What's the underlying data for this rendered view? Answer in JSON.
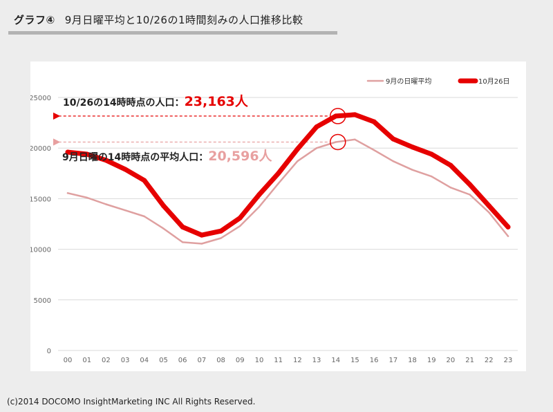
{
  "header": {
    "title_prefix": "グラフ④",
    "title_text": "9月日曜平均と10/26の1時間刻みの人口推移比較"
  },
  "footer": {
    "copyright": "(c)2014 DOCOMO InsightMarketing INC All Rights Reserved."
  },
  "colors": {
    "series_sep": "#dfa0a0",
    "series_oct": "#e60000",
    "annotation_oct": "#e60000",
    "annotation_sep": "#e8a0a0"
  },
  "chart_data": {
    "type": "line",
    "title": "",
    "xlabel": "",
    "ylabel": "",
    "ylim": [
      0,
      25000
    ],
    "yticks": [
      "0",
      "5000",
      "10000",
      "15000",
      "20000",
      "25000"
    ],
    "categories": [
      "00",
      "01",
      "02",
      "03",
      "04",
      "05",
      "06",
      "07",
      "08",
      "09",
      "10",
      "11",
      "12",
      "13",
      "14",
      "15",
      "16",
      "17",
      "18",
      "19",
      "20",
      "21",
      "22",
      "23"
    ],
    "series": [
      {
        "name": "9月の日曜平均",
        "values": [
          15550,
          15100,
          14450,
          13850,
          13250,
          12050,
          10700,
          10550,
          11100,
          12300,
          14200,
          16500,
          18700,
          20000,
          20596,
          20850,
          19800,
          18700,
          17850,
          17200,
          16100,
          15400,
          13650,
          11300
        ]
      },
      {
        "name": "10月26日",
        "values": [
          19600,
          19400,
          18800,
          17900,
          16800,
          14300,
          12200,
          11400,
          11800,
          13100,
          15400,
          17500,
          19900,
          22100,
          23163,
          23300,
          22600,
          20900,
          20100,
          19400,
          18300,
          16400,
          14300,
          12200
        ]
      }
    ],
    "annotations": [
      {
        "label": "10/26の14時時点の人口：",
        "value": "23,163人"
      },
      {
        "label": "9月日曜の14時時点の平均人口：",
        "value": "20,596人"
      }
    ],
    "legend_position": "top-right",
    "grid": true
  }
}
